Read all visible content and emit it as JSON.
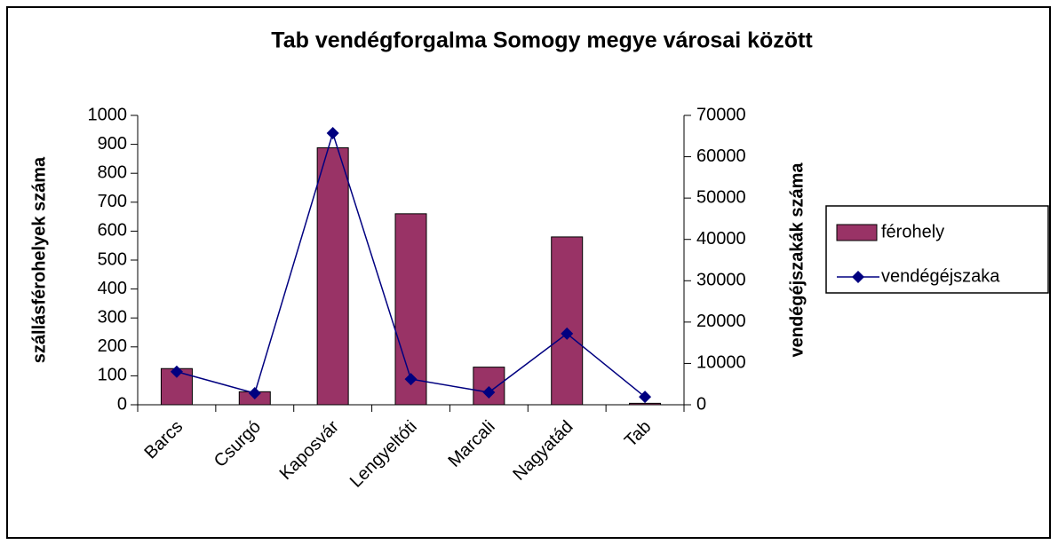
{
  "chart_data": {
    "type": "bar",
    "title": "Tab vendégforgalma Somogy megye városai között",
    "ylabel": "szállásférohelyek száma",
    "y2label": "vendégéjszakák száma",
    "categories": [
      "Barcs",
      "Csurgó",
      "Kaposvár",
      "Lengyeltóti",
      "Marcali",
      "Nagyatád",
      "Tab"
    ],
    "series": [
      {
        "name": "férohely",
        "type": "bar",
        "color": "#993366",
        "values": [
          125,
          45,
          888,
          660,
          130,
          580,
          5
        ]
      },
      {
        "name": "vendégéjszaka",
        "type": "line",
        "axis": "y2",
        "color": "#000080",
        "values": [
          8000,
          2800,
          65700,
          6200,
          3000,
          17200,
          1900
        ]
      }
    ],
    "ylim": [
      0,
      1000
    ],
    "yticks": [
      0,
      100,
      200,
      300,
      400,
      500,
      600,
      700,
      800,
      900,
      1000
    ],
    "y2lim": [
      0,
      70000
    ],
    "y2ticks": [
      0,
      10000,
      20000,
      30000,
      40000,
      50000,
      60000,
      70000
    ],
    "grid": false,
    "legend": "right"
  }
}
